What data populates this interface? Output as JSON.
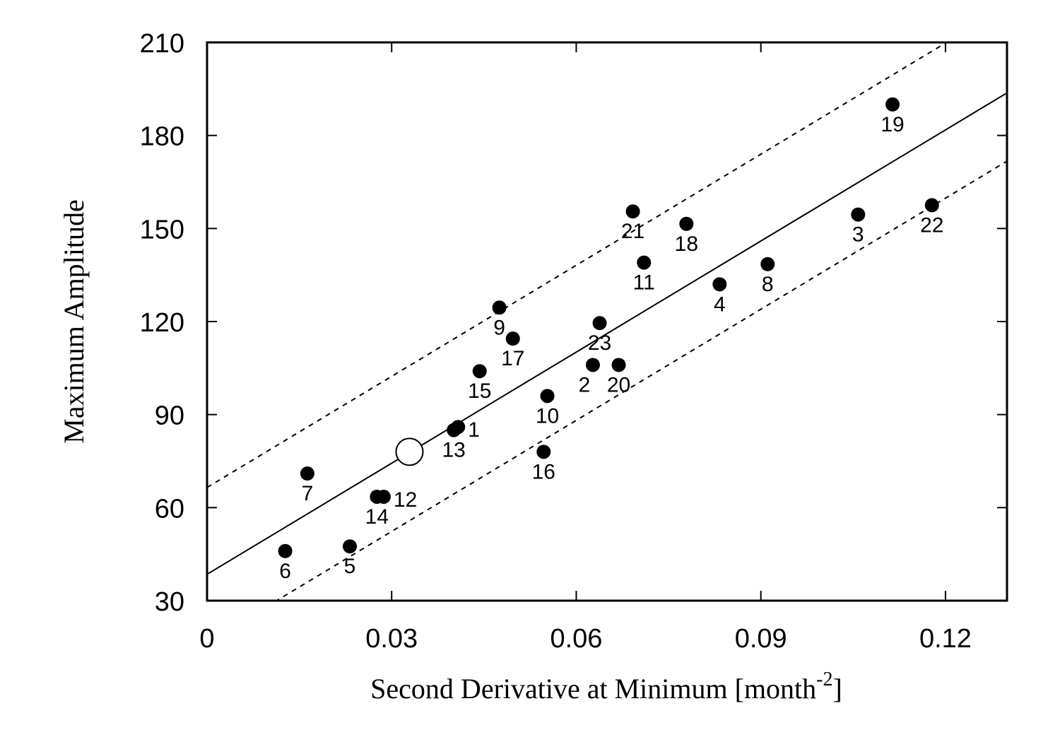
{
  "chart_data": {
    "type": "scatter",
    "title": "",
    "xlabel": "Second Derivative at Minimum [month",
    "xlabel_sup": "-2",
    "xlabel_end": "]",
    "ylabel": "Maximum Amplitude",
    "xlim": [
      0,
      0.13
    ],
    "ylim": [
      30,
      210
    ],
    "xticks": [
      0,
      0.03,
      0.06,
      0.09,
      0.12
    ],
    "xtick_labels": [
      "0",
      "0.03",
      "0.06",
      "0.09",
      "0.12"
    ],
    "yticks": [
      30,
      60,
      90,
      120,
      150,
      180,
      210
    ],
    "ytick_labels": [
      "30",
      "60",
      "90",
      "120",
      "150",
      "180",
      "210"
    ],
    "points": [
      {
        "label": "1",
        "x": 0.0408,
        "y": 86.0,
        "label_pos": "right"
      },
      {
        "label": "2",
        "x": 0.0627,
        "y": 106.0,
        "label_pos": "below-left"
      },
      {
        "label": "3",
        "x": 0.1058,
        "y": 154.5,
        "label_pos": "below"
      },
      {
        "label": "4",
        "x": 0.0833,
        "y": 132.0,
        "label_pos": "below"
      },
      {
        "label": "5",
        "x": 0.0232,
        "y": 47.5,
        "label_pos": "below"
      },
      {
        "label": "6",
        "x": 0.0127,
        "y": 46.0,
        "label_pos": "below"
      },
      {
        "label": "7",
        "x": 0.0163,
        "y": 71.0,
        "label_pos": "below"
      },
      {
        "label": "8",
        "x": 0.0911,
        "y": 138.5,
        "label_pos": "below"
      },
      {
        "label": "9",
        "x": 0.0475,
        "y": 124.5,
        "label_pos": "below"
      },
      {
        "label": "10",
        "x": 0.0553,
        "y": 96.0,
        "label_pos": "below"
      },
      {
        "label": "11",
        "x": 0.071,
        "y": 139.0,
        "label_pos": "below"
      },
      {
        "label": "12",
        "x": 0.0287,
        "y": 63.5,
        "label_pos": "right"
      },
      {
        "label": "13",
        "x": 0.0401,
        "y": 85.0,
        "label_pos": "below"
      },
      {
        "label": "14",
        "x": 0.0276,
        "y": 63.5,
        "label_pos": "below"
      },
      {
        "label": "15",
        "x": 0.0443,
        "y": 104.0,
        "label_pos": "below"
      },
      {
        "label": "16",
        "x": 0.0547,
        "y": 78.0,
        "label_pos": "below"
      },
      {
        "label": "17",
        "x": 0.0497,
        "y": 114.5,
        "label_pos": "below"
      },
      {
        "label": "18",
        "x": 0.0779,
        "y": 151.5,
        "label_pos": "below"
      },
      {
        "label": "19",
        "x": 0.1114,
        "y": 190.0,
        "label_pos": "below"
      },
      {
        "label": "20",
        "x": 0.0669,
        "y": 106.0,
        "label_pos": "below"
      },
      {
        "label": "21",
        "x": 0.0692,
        "y": 155.5,
        "label_pos": "below"
      },
      {
        "label": "22",
        "x": 0.1178,
        "y": 157.5,
        "label_pos": "below"
      },
      {
        "label": "23",
        "x": 0.0638,
        "y": 119.5,
        "label_pos": "below"
      }
    ],
    "open_circle": {
      "x": 0.0329,
      "y": 78.0
    },
    "fit_line": {
      "slope": 1194,
      "intercept": 38.5,
      "style": "solid"
    },
    "bounds": [
      {
        "slope": 1194,
        "intercept": 66.5,
        "style": "dashed"
      },
      {
        "slope": 1194,
        "intercept": 16.5,
        "style": "dashed"
      }
    ]
  }
}
